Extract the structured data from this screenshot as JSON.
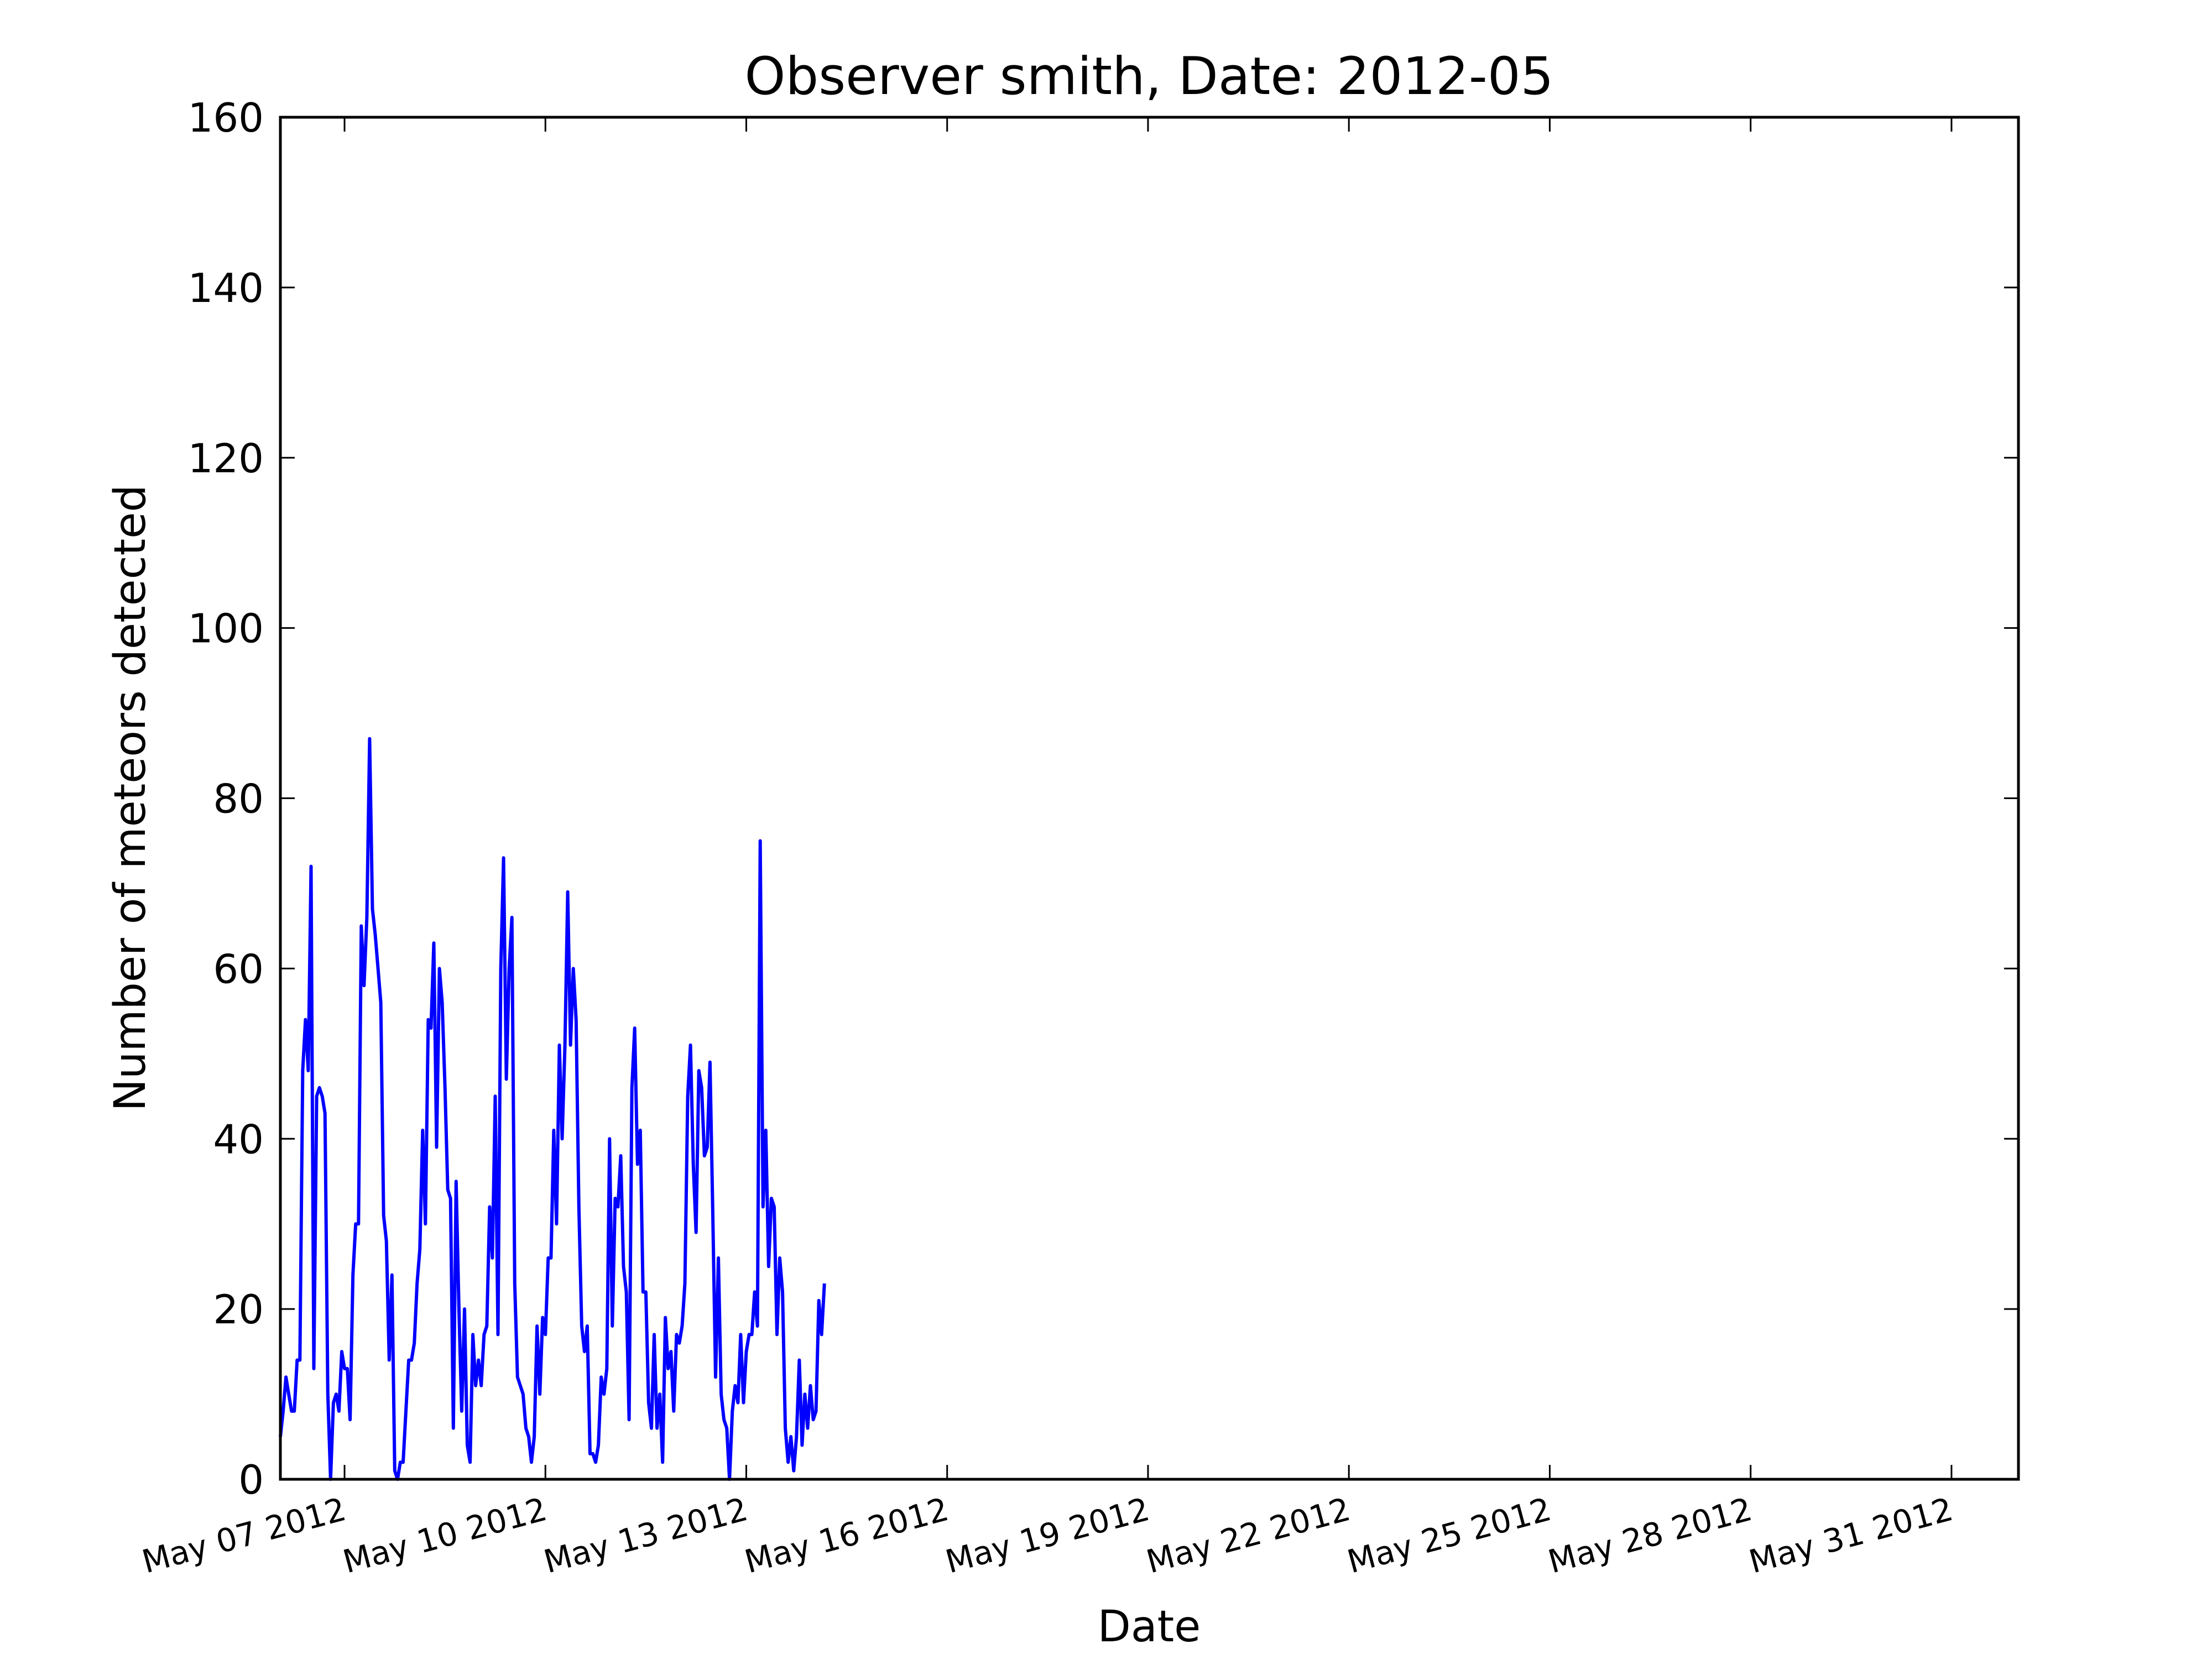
{
  "chart_data": {
    "type": "line",
    "title": "Observer smith, Date: 2012-05",
    "x_label": "Date",
    "y_label": "Number of meteors detected",
    "color": "#0000ff",
    "x": [
      121,
      122,
      123,
      124,
      125,
      126,
      127,
      128,
      129,
      130,
      131,
      132,
      133,
      134,
      135,
      136,
      137,
      138,
      139,
      140,
      141,
      142,
      143,
      144,
      145,
      146,
      147,
      148,
      149,
      150,
      151,
      152,
      153,
      154,
      155,
      156,
      157,
      158,
      159,
      160,
      161,
      162,
      163,
      164,
      165,
      166,
      167,
      168,
      169,
      170,
      171,
      172,
      173,
      174,
      175,
      176,
      177,
      178,
      179,
      180,
      181,
      182,
      183,
      184,
      185,
      186,
      187,
      188,
      189,
      190,
      191,
      192,
      193,
      194,
      195,
      196,
      197,
      198,
      199,
      200,
      201,
      202,
      203,
      204,
      205,
      206,
      207,
      208,
      209,
      210,
      211,
      212,
      213,
      214,
      215,
      216,
      217,
      218,
      219,
      220,
      221,
      222,
      223,
      224,
      225,
      226,
      227,
      228,
      229,
      230,
      231,
      232,
      233,
      234,
      235,
      236,
      237,
      238,
      239,
      240,
      241,
      242,
      243,
      244,
      245,
      246,
      247,
      248,
      249,
      250,
      251,
      252,
      253,
      254,
      255,
      256,
      257,
      258,
      259,
      260,
      261,
      262,
      263,
      264,
      265,
      266,
      267,
      268,
      269,
      270,
      271,
      272,
      273,
      274,
      275,
      276,
      277,
      278,
      279,
      280,
      281,
      282,
      283,
      284,
      285,
      286,
      287,
      288,
      289,
      290,
      291,
      292,
      293,
      294,
      295,
      296,
      297,
      298,
      299,
      300,
      301,
      302,
      303,
      304,
      305,
      306,
      307,
      308,
      309,
      310,
      311,
      312,
      313,
      314,
      315,
      316
    ],
    "values": [
      5,
      8,
      12,
      10,
      8,
      8,
      14,
      14,
      48,
      54,
      48,
      72,
      13,
      45,
      46,
      45,
      43,
      10,
      0,
      9,
      10,
      8,
      15,
      13,
      13,
      7,
      24,
      30,
      30,
      65,
      58,
      66,
      87,
      67,
      64,
      60,
      56,
      31,
      28,
      14,
      24,
      1,
      0,
      2,
      2,
      8,
      14,
      14,
      16,
      23,
      27,
      41,
      30,
      54,
      53,
      63,
      39,
      60,
      56,
      46,
      34,
      33,
      6,
      35,
      20,
      8,
      20,
      4,
      2,
      17,
      11,
      14,
      11,
      17,
      18,
      32,
      26,
      45,
      17,
      60,
      73,
      47,
      60,
      66,
      23,
      12,
      11,
      10,
      6,
      5,
      2,
      5,
      18,
      10,
      19,
      17,
      26,
      26,
      41,
      30,
      51,
      40,
      51,
      69,
      51,
      60,
      54,
      32,
      18,
      15,
      18,
      3,
      3,
      2,
      4,
      12,
      10,
      13,
      40,
      18,
      33,
      32,
      38,
      25,
      22,
      7,
      46,
      53,
      37,
      41,
      22,
      22,
      9,
      6,
      17,
      6,
      10,
      2,
      19,
      13,
      15,
      8,
      17,
      16,
      18,
      23,
      45,
      51,
      37,
      29,
      48,
      46,
      38,
      39,
      49,
      31,
      12,
      26,
      10,
      7,
      6,
      0,
      8,
      11,
      9,
      17,
      9,
      15,
      17,
      17,
      22,
      18,
      75,
      32,
      41,
      25,
      33,
      32,
      17,
      26,
      22,
      6,
      2,
      5,
      1,
      5,
      14,
      4,
      10,
      6,
      11,
      7,
      8,
      21,
      17,
      23
    ],
    "xlim": [
      121,
      744
    ],
    "xticks": [
      {
        "value": 144,
        "label": "May 07 2012"
      },
      {
        "value": 216,
        "label": "May 10 2012"
      },
      {
        "value": 288,
        "label": "May 13 2012"
      },
      {
        "value": 360,
        "label": "May 16 2012"
      },
      {
        "value": 432,
        "label": "May 19 2012"
      },
      {
        "value": 504,
        "label": "May 22 2012"
      },
      {
        "value": 576,
        "label": "May 25 2012"
      },
      {
        "value": 648,
        "label": "May 28 2012"
      },
      {
        "value": 720,
        "label": "May 31 2012"
      }
    ],
    "ylim": [
      0,
      160
    ],
    "yticks": [
      0,
      20,
      40,
      60,
      80,
      100,
      120,
      140,
      160
    ]
  }
}
